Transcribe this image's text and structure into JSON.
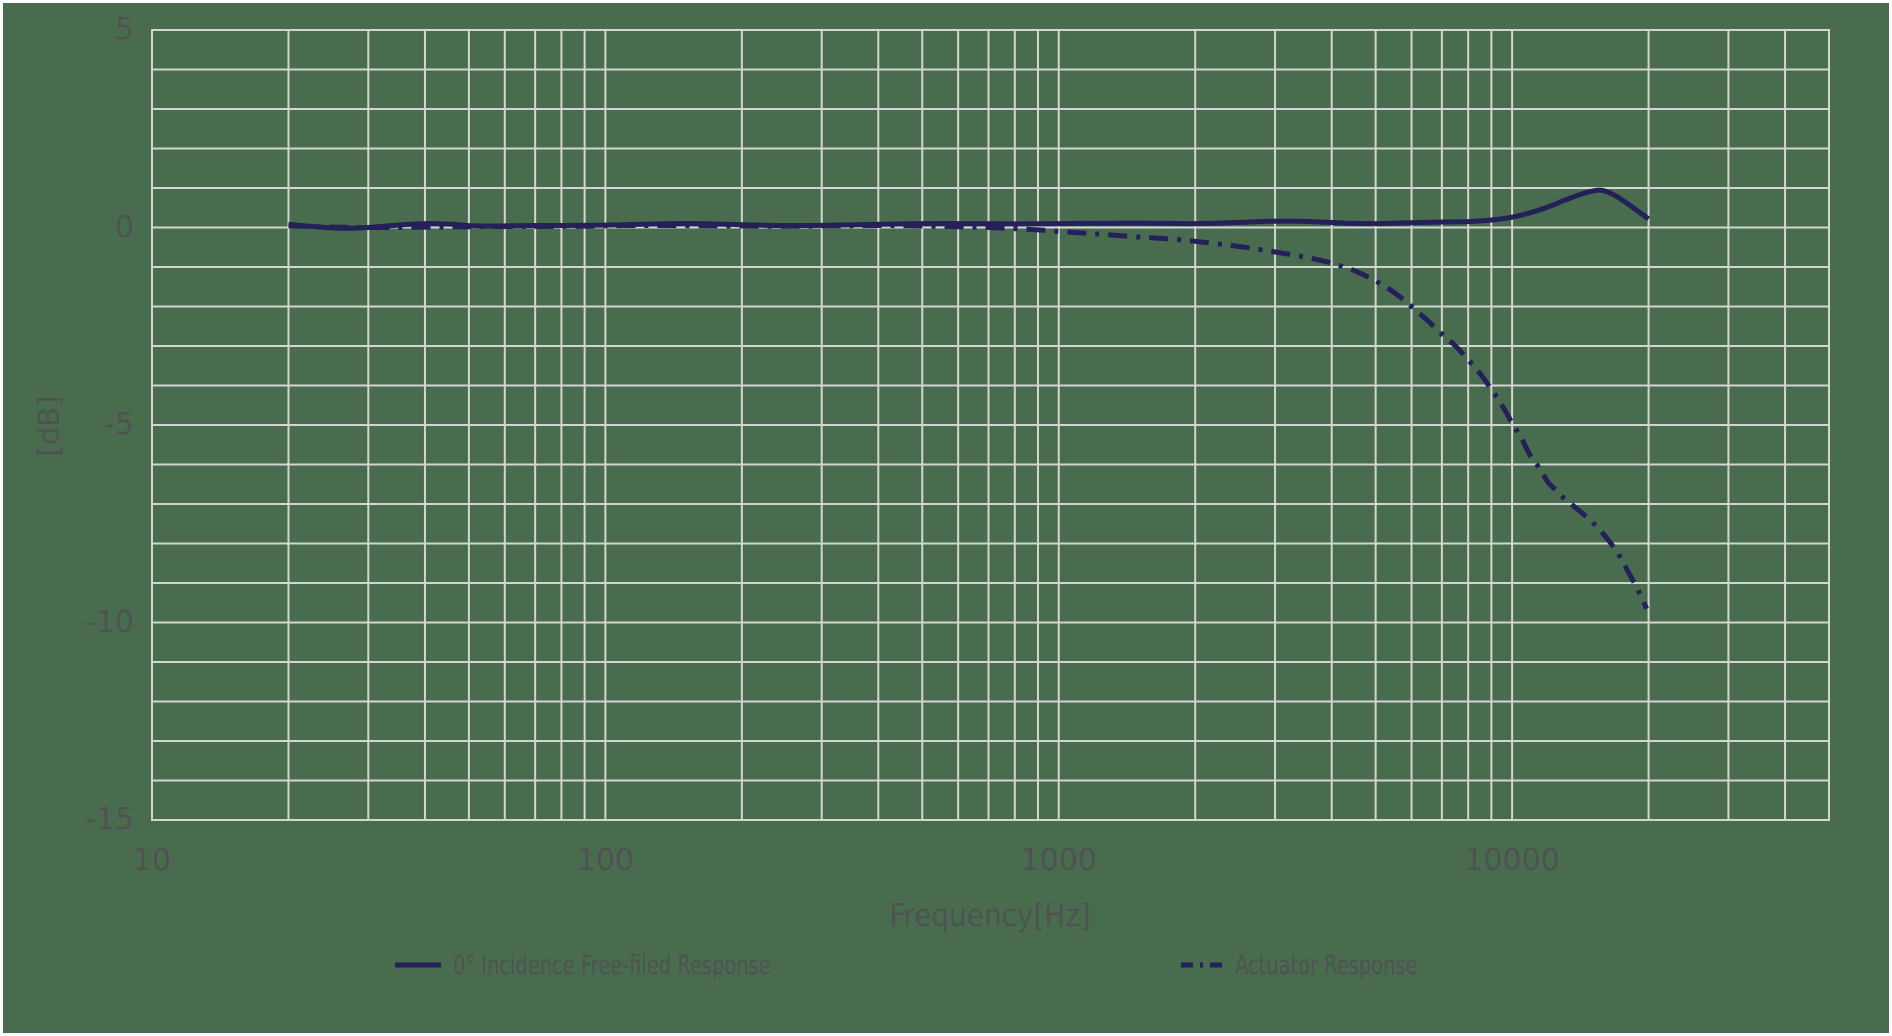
{
  "colors": {
    "background": "#4A6C4E",
    "grid": "#D3D5D2",
    "series_line": "#23205A",
    "text": "#4F5252",
    "frame": "#FFFFFF"
  },
  "chart_data": {
    "type": "line",
    "title": "",
    "xlabel": "Frequency[Hz]",
    "ylabel": "[dB]",
    "x_scale": "log",
    "xlim": [
      10,
      50000
    ],
    "ylim": [
      -15,
      5
    ],
    "grid": "major-and-minor",
    "legend_position": "bottom",
    "x_major_ticks": [
      10,
      100,
      1000,
      10000
    ],
    "x_major_tick_labels": [
      "10",
      "100",
      "1000",
      "10000"
    ],
    "y_major_ticks": [
      5,
      0,
      -5,
      -10,
      -15
    ],
    "y_major_tick_labels": [
      "5",
      "0",
      "-5",
      "-10",
      "-15"
    ],
    "x_gridlines": [
      10,
      20,
      30,
      40,
      50,
      60,
      70,
      80,
      90,
      100,
      200,
      300,
      400,
      500,
      600,
      700,
      800,
      900,
      1000,
      2000,
      3000,
      4000,
      5000,
      6000,
      7000,
      8000,
      9000,
      10000,
      20000,
      30000,
      40000,
      50000
    ],
    "y_gridlines": [
      -15,
      -14,
      -13,
      -12,
      -11,
      -10,
      -9,
      -8,
      -7,
      -6,
      -5,
      -4,
      -3,
      -2,
      -1,
      0,
      1,
      2,
      3,
      4,
      5
    ],
    "series": [
      {
        "name": "0° Incidence Free-filed Response",
        "style": "solid",
        "color": "#23205A",
        "points": [
          [
            20,
            0.08
          ],
          [
            23,
            0.02
          ],
          [
            26,
            -0.02
          ],
          [
            30,
            0.0
          ],
          [
            34,
            0.05
          ],
          [
            40,
            0.1
          ],
          [
            46,
            0.08
          ],
          [
            52,
            0.04
          ],
          [
            60,
            0.04
          ],
          [
            70,
            0.05
          ],
          [
            80,
            0.05
          ],
          [
            100,
            0.06
          ],
          [
            130,
            0.09
          ],
          [
            160,
            0.1
          ],
          [
            200,
            0.07
          ],
          [
            250,
            0.05
          ],
          [
            320,
            0.06
          ],
          [
            400,
            0.08
          ],
          [
            500,
            0.1
          ],
          [
            650,
            0.1
          ],
          [
            800,
            0.09
          ],
          [
            1000,
            0.1
          ],
          [
            1300,
            0.11
          ],
          [
            1600,
            0.11
          ],
          [
            2000,
            0.1
          ],
          [
            2500,
            0.13
          ],
          [
            3000,
            0.16
          ],
          [
            3600,
            0.15
          ],
          [
            4300,
            0.11
          ],
          [
            5000,
            0.1
          ],
          [
            6000,
            0.12
          ],
          [
            7000,
            0.14
          ],
          [
            8000,
            0.15
          ],
          [
            9000,
            0.19
          ],
          [
            10000,
            0.26
          ],
          [
            11000,
            0.38
          ],
          [
            12000,
            0.52
          ],
          [
            13000,
            0.68
          ],
          [
            14000,
            0.82
          ],
          [
            15000,
            0.92
          ],
          [
            15800,
            0.94
          ],
          [
            16800,
            0.82
          ],
          [
            18000,
            0.6
          ],
          [
            19000,
            0.4
          ],
          [
            20000,
            0.22
          ]
        ]
      },
      {
        "name": "Actuator Response",
        "style": "dash-dot",
        "color": "#23205A",
        "points": [
          [
            20,
            0.04
          ],
          [
            30,
            0.0
          ],
          [
            50,
            0.02
          ],
          [
            80,
            0.03
          ],
          [
            120,
            0.05
          ],
          [
            200,
            0.04
          ],
          [
            300,
            0.04
          ],
          [
            400,
            0.05
          ],
          [
            500,
            0.04
          ],
          [
            600,
            0.02
          ],
          [
            700,
            0.0
          ],
          [
            800,
            -0.03
          ],
          [
            900,
            -0.06
          ],
          [
            1000,
            -0.1
          ],
          [
            1200,
            -0.16
          ],
          [
            1500,
            -0.24
          ],
          [
            1800,
            -0.3
          ],
          [
            2000,
            -0.35
          ],
          [
            2500,
            -0.48
          ],
          [
            3000,
            -0.62
          ],
          [
            3500,
            -0.75
          ],
          [
            4000,
            -0.9
          ],
          [
            4500,
            -1.1
          ],
          [
            5000,
            -1.35
          ],
          [
            5500,
            -1.65
          ],
          [
            6000,
            -2.0
          ],
          [
            6500,
            -2.35
          ],
          [
            7000,
            -2.7
          ],
          [
            7500,
            -3.0
          ],
          [
            8000,
            -3.35
          ],
          [
            8500,
            -3.7
          ],
          [
            9000,
            -4.1
          ],
          [
            9500,
            -4.5
          ],
          [
            10000,
            -4.95
          ],
          [
            10500,
            -5.35
          ],
          [
            11000,
            -5.8
          ],
          [
            11500,
            -6.1
          ],
          [
            12000,
            -6.45
          ],
          [
            12500,
            -6.65
          ],
          [
            13000,
            -6.85
          ],
          [
            13500,
            -7.0
          ],
          [
            14000,
            -7.15
          ],
          [
            15000,
            -7.45
          ],
          [
            16000,
            -7.8
          ],
          [
            17000,
            -8.2
          ],
          [
            18000,
            -8.7
          ],
          [
            19000,
            -9.2
          ],
          [
            19800,
            -9.65
          ]
        ]
      }
    ]
  }
}
